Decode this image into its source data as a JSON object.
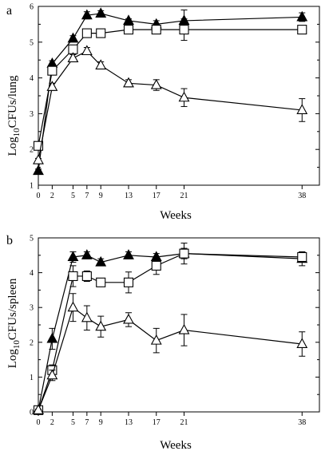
{
  "chart_data": [
    {
      "type": "line",
      "panel_label": "a",
      "xlabel": "Weeks",
      "ylabel_main": "Log",
      "ylabel_sub": "10",
      "ylabel_rest": "CFUs/lung",
      "xticks": [
        0,
        2,
        5,
        7,
        9,
        13,
        17,
        21,
        38
      ],
      "yticks": [
        1,
        2,
        3,
        4,
        5,
        6
      ],
      "xlim": [
        0,
        40.5
      ],
      "ylim": [
        1,
        6
      ],
      "series": [
        {
          "marker": "filled-triangle",
          "x": [
            0,
            2,
            5,
            7,
            9,
            13,
            17,
            21,
            38
          ],
          "y": [
            1.4,
            4.4,
            5.1,
            5.75,
            5.8,
            5.6,
            5.5,
            5.6,
            5.7
          ],
          "err": [
            0.05,
            0.08,
            0.08,
            0.1,
            0.08,
            0.05,
            0.1,
            0.3,
            0.12
          ]
        },
        {
          "marker": "open-square",
          "x": [
            0,
            2,
            5,
            7,
            9,
            13,
            17,
            21,
            38
          ],
          "y": [
            2.1,
            4.2,
            4.8,
            5.25,
            5.25,
            5.35,
            5.35,
            5.35,
            5.35
          ],
          "err": [
            0.05,
            0.08,
            0.08,
            0.08,
            0.08,
            0.1,
            0.12,
            0.3,
            0.1
          ]
        },
        {
          "marker": "open-triangle",
          "x": [
            0,
            2,
            5,
            7,
            9,
            13,
            17,
            21,
            38
          ],
          "y": [
            1.7,
            3.75,
            4.55,
            4.75,
            4.35,
            3.85,
            3.8,
            3.45,
            3.1
          ],
          "err": [
            0.05,
            0.1,
            0.1,
            0.1,
            0.1,
            0.1,
            0.15,
            0.25,
            0.32
          ]
        }
      ]
    },
    {
      "type": "line",
      "panel_label": "b",
      "xlabel": "Weeks",
      "ylabel_main": "Log",
      "ylabel_sub": "10",
      "ylabel_rest": "CFUs/spleen",
      "xticks": [
        0,
        2,
        5,
        7,
        9,
        13,
        17,
        21,
        38
      ],
      "yticks": [
        0,
        1,
        2,
        3,
        4,
        5
      ],
      "xlim": [
        0,
        40.5
      ],
      "ylim": [
        0,
        5
      ],
      "series": [
        {
          "marker": "filled-triangle",
          "x": [
            0,
            2,
            5,
            7,
            9,
            13,
            17,
            21,
            38
          ],
          "y": [
            0.05,
            2.1,
            4.45,
            4.5,
            4.3,
            4.5,
            4.45,
            4.55,
            4.4
          ],
          "err": [
            0.03,
            0.3,
            0.15,
            0.1,
            0.1,
            0.1,
            0.1,
            0.15,
            0.2
          ]
        },
        {
          "marker": "open-square",
          "x": [
            0,
            2,
            5,
            7,
            9,
            13,
            17,
            21,
            38
          ],
          "y": [
            0.05,
            1.2,
            3.9,
            3.9,
            3.72,
            3.72,
            4.2,
            4.55,
            4.45
          ],
          "err": [
            0.03,
            0.15,
            0.3,
            0.15,
            0.1,
            0.3,
            0.25,
            0.3,
            0.15
          ]
        },
        {
          "marker": "open-triangle",
          "x": [
            0,
            2,
            5,
            7,
            9,
            13,
            17,
            21,
            38
          ],
          "y": [
            0.05,
            1.05,
            3.0,
            2.7,
            2.45,
            2.65,
            2.05,
            2.35,
            1.95
          ],
          "err": [
            0.03,
            0.15,
            0.4,
            0.35,
            0.3,
            0.2,
            0.35,
            0.45,
            0.35
          ]
        }
      ]
    }
  ]
}
